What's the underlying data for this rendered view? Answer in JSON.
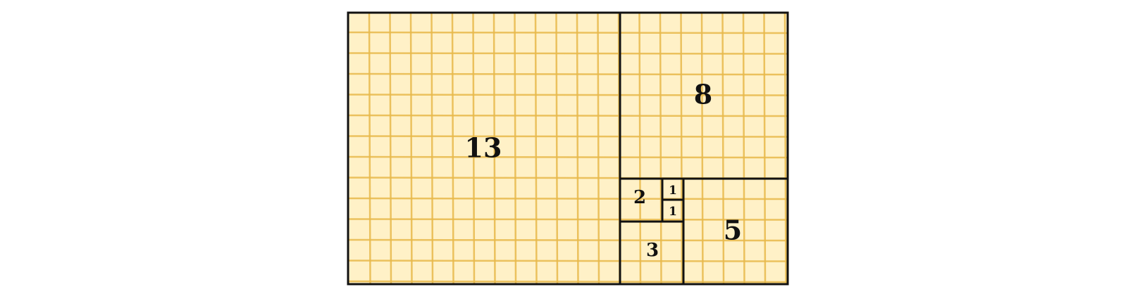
{
  "diagram": {
    "title": "",
    "fill_color": "#fff1c7",
    "hatch_color": "#e8b84a",
    "stroke_color": "#111111",
    "tiles": [
      {
        "id": "13",
        "label": "13",
        "value": 13
      },
      {
        "id": "8",
        "label": "8",
        "value": 8
      },
      {
        "id": "5",
        "label": "5",
        "value": 5
      },
      {
        "id": "3",
        "label": "3",
        "value": 3
      },
      {
        "id": "2",
        "label": "2",
        "value": 2
      },
      {
        "id": "1a",
        "label": "1",
        "value": 1
      },
      {
        "id": "1b",
        "label": "1",
        "value": 1
      }
    ]
  }
}
